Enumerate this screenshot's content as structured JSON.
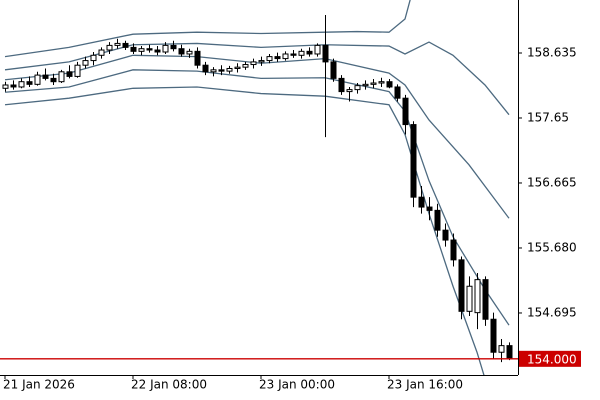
{
  "chart_data": {
    "type": "candlestick",
    "candle_colors": {
      "up": "#ffffff",
      "down": "#000000",
      "outline": "#000000"
    },
    "ohlc": {
      "open": [
        158.1,
        158.15,
        158.12,
        158.2,
        158.16,
        158.3,
        158.25,
        158.2,
        158.35,
        158.28,
        158.45,
        158.52,
        158.6,
        158.68,
        158.75,
        158.78,
        158.72,
        158.66,
        158.7,
        158.68,
        158.65,
        158.75,
        158.7,
        158.62,
        158.66,
        158.45,
        158.35,
        158.38,
        158.36,
        158.4,
        158.42,
        158.46,
        158.5,
        158.52,
        158.58,
        158.55,
        158.62,
        158.6,
        158.66,
        158.62,
        158.75,
        158.5,
        158.25,
        158.05,
        158.08,
        158.14,
        158.16,
        158.18,
        158.2,
        158.12,
        157.95,
        157.55,
        156.45,
        156.3,
        156.25,
        155.95,
        155.8,
        155.5,
        154.72,
        154.7,
        155.2,
        154.6,
        154.1,
        154.2
      ],
      "high": [
        158.2,
        158.22,
        158.25,
        158.28,
        158.35,
        158.4,
        158.32,
        158.38,
        158.45,
        158.5,
        158.58,
        158.65,
        158.72,
        158.8,
        158.85,
        158.82,
        158.78,
        158.74,
        158.76,
        158.74,
        158.8,
        158.82,
        158.76,
        158.7,
        158.72,
        158.5,
        158.42,
        158.45,
        158.44,
        158.48,
        158.5,
        158.55,
        158.58,
        158.62,
        158.64,
        158.66,
        158.68,
        158.7,
        158.72,
        158.78,
        159.21,
        158.55,
        158.3,
        158.12,
        158.18,
        158.22,
        158.24,
        158.26,
        158.24,
        158.16,
        158.0,
        157.6,
        156.62,
        156.45,
        156.35,
        156.05,
        155.9,
        155.55,
        155.25,
        155.3,
        155.25,
        154.7,
        154.3,
        154.25
      ],
      "low": [
        158.05,
        158.08,
        158.1,
        158.12,
        158.14,
        158.22,
        158.15,
        158.18,
        158.25,
        158.26,
        158.4,
        158.45,
        158.55,
        158.62,
        158.7,
        158.68,
        158.62,
        158.6,
        158.64,
        158.6,
        158.62,
        158.66,
        158.58,
        158.56,
        158.4,
        158.3,
        158.28,
        158.3,
        158.32,
        158.34,
        158.38,
        158.4,
        158.44,
        158.48,
        158.5,
        158.52,
        158.56,
        158.55,
        158.58,
        158.58,
        157.36,
        158.2,
        158.0,
        157.9,
        158.02,
        158.08,
        158.1,
        158.12,
        158.1,
        157.9,
        157.4,
        156.3,
        156.2,
        156.1,
        155.85,
        155.7,
        155.4,
        154.6,
        154.65,
        154.45,
        154.5,
        154.0,
        153.95,
        153.98
      ],
      "close": [
        158.15,
        158.12,
        158.2,
        158.16,
        158.3,
        158.25,
        158.2,
        158.35,
        158.28,
        158.45,
        158.52,
        158.6,
        158.68,
        158.75,
        158.78,
        158.72,
        158.66,
        158.7,
        158.68,
        158.65,
        158.75,
        158.7,
        158.62,
        158.66,
        158.45,
        158.35,
        158.38,
        158.36,
        158.4,
        158.42,
        158.46,
        158.5,
        158.52,
        158.58,
        158.55,
        158.62,
        158.6,
        158.66,
        158.62,
        158.75,
        158.5,
        158.25,
        158.05,
        158.08,
        158.14,
        158.16,
        158.18,
        158.2,
        158.12,
        157.95,
        157.55,
        156.45,
        156.3,
        156.25,
        155.95,
        155.8,
        155.5,
        154.72,
        155.1,
        155.2,
        154.6,
        154.1,
        154.2,
        154.0
      ]
    },
    "bands": [
      {
        "color": "#4d6a80",
        "x": [
          0,
          8,
          16,
          24,
          32,
          40,
          44,
          48,
          50,
          51
        ],
        "values": [
          158.58,
          158.72,
          158.92,
          158.95,
          158.93,
          158.95,
          158.96,
          158.95,
          159.15,
          159.6
        ]
      },
      {
        "color": "#4d6a80",
        "x": [
          0,
          8,
          16,
          24,
          32,
          40,
          48,
          50,
          53,
          56,
          60,
          63
        ],
        "values": [
          158.38,
          158.5,
          158.76,
          158.78,
          158.72,
          158.76,
          158.74,
          158.62,
          158.8,
          158.6,
          158.15,
          157.7
        ]
      },
      {
        "color": "#4d6a80",
        "x": [
          0,
          8,
          16,
          24,
          32,
          40,
          48,
          50,
          53,
          58,
          63
        ],
        "values": [
          158.23,
          158.33,
          158.6,
          158.58,
          158.48,
          158.55,
          158.33,
          158.15,
          157.62,
          156.94,
          156.13
        ]
      },
      {
        "color": "#4d6a80",
        "x": [
          0,
          8,
          16,
          24,
          32,
          40,
          48,
          50,
          53,
          56,
          60,
          63
        ],
        "values": [
          158.04,
          158.12,
          158.38,
          158.36,
          158.25,
          158.26,
          158.05,
          157.75,
          156.7,
          155.85,
          155.05,
          154.51
        ]
      },
      {
        "color": "#4d6a80",
        "x": [
          0,
          8,
          16,
          24,
          32,
          40,
          48,
          50,
          53,
          56,
          59,
          60
        ],
        "values": [
          157.85,
          157.95,
          158.1,
          158.12,
          158.02,
          157.98,
          157.85,
          157.4,
          156.2,
          155.1,
          154.1,
          153.7
        ]
      }
    ],
    "price_line": {
      "value": 154,
      "label": "154.000",
      "color": "#cc0000"
    },
    "xlim": [
      -0.625,
      64.125
    ],
    "ylim": [
      153.755,
      159.438
    ],
    "xticks": [
      {
        "value": 0,
        "label": "21 Jan 2026"
      },
      {
        "value": 16,
        "label": "22 Jan 08:00"
      },
      {
        "value": 32,
        "label": "23 Jan 00:00"
      },
      {
        "value": 48,
        "label": "23 Jan 16:00"
      }
    ],
    "yticks": [
      158.635,
      157.65,
      {
        "value": 156.665,
        "label": "156.665"
      },
      {
        "value": 155.68,
        "label": "155.680"
      },
      {
        "value": 154.695,
        "label": "154.695"
      }
    ]
  }
}
